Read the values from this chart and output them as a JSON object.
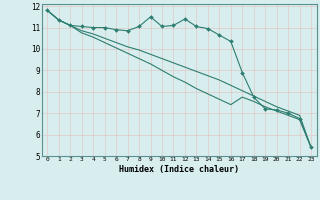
{
  "xlabel": "Humidex (Indice chaleur)",
  "background_color": "#d8eeee",
  "grid_color": "#e0c8c8",
  "line_color": "#2d7d70",
  "xlim": [
    -0.5,
    23.5
  ],
  "ylim": [
    5,
    12.1
  ],
  "xticks": [
    0,
    1,
    2,
    3,
    4,
    5,
    6,
    7,
    8,
    9,
    10,
    11,
    12,
    13,
    14,
    15,
    16,
    17,
    18,
    19,
    20,
    21,
    22,
    23
  ],
  "yticks": [
    5,
    6,
    7,
    8,
    9,
    10,
    11,
    12
  ],
  "line1_x": [
    0,
    1,
    2,
    3,
    4,
    5,
    6,
    7,
    8,
    9,
    10,
    11,
    12,
    13,
    14,
    15,
    16,
    17,
    18,
    19,
    20,
    21,
    22,
    23
  ],
  "line1_y": [
    11.8,
    11.35,
    11.1,
    11.05,
    11.0,
    11.0,
    10.9,
    10.85,
    11.05,
    11.5,
    11.05,
    11.1,
    11.4,
    11.05,
    10.95,
    10.65,
    10.35,
    8.9,
    7.75,
    7.2,
    7.15,
    7.0,
    6.75,
    5.4
  ],
  "line2_x": [
    0,
    1,
    2,
    3,
    4,
    5,
    6,
    7,
    8,
    9,
    10,
    11,
    12,
    13,
    14,
    15,
    16,
    17,
    18,
    19,
    20,
    21,
    22,
    23
  ],
  "line2_y": [
    11.8,
    11.35,
    11.1,
    10.85,
    10.7,
    10.5,
    10.3,
    10.1,
    9.95,
    9.75,
    9.55,
    9.35,
    9.15,
    8.95,
    8.75,
    8.55,
    8.3,
    8.05,
    7.8,
    7.55,
    7.3,
    7.1,
    6.9,
    5.4
  ],
  "line3_x": [
    0,
    1,
    2,
    3,
    4,
    5,
    6,
    7,
    8,
    9,
    10,
    11,
    12,
    13,
    14,
    15,
    16,
    17,
    18,
    19,
    20,
    21,
    22,
    23
  ],
  "line3_y": [
    11.8,
    11.35,
    11.1,
    10.75,
    10.55,
    10.3,
    10.05,
    9.8,
    9.55,
    9.3,
    9.0,
    8.7,
    8.45,
    8.15,
    7.9,
    7.65,
    7.4,
    7.75,
    7.55,
    7.3,
    7.1,
    6.9,
    6.7,
    5.4
  ]
}
